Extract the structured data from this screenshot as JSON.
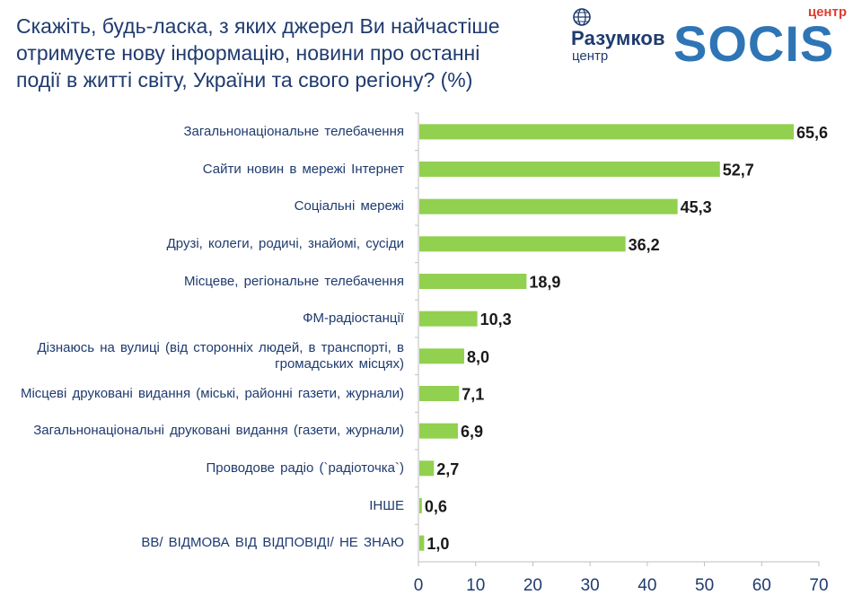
{
  "title": "Скажіть, будь-ласка, з яких джерел Ви найчастіше\nотримуєте нову інформацію, новини про останні\nподії в житті світу, України та свого регіону? (%)",
  "logos": {
    "razumkov_name": "Разумков",
    "razumkov_sub": "центр",
    "socis_name": "SOCIS",
    "socis_sub": "центр"
  },
  "chart_data": {
    "type": "bar",
    "orientation": "horizontal",
    "categories": [
      "Загальнонаціональне телебачення",
      "Сайти новин в мережі Інтернет",
      "Соціальні мережі",
      "Друзі, колеги, родичі, знайомі, сусіди",
      "Місцеве, регіональне телебачення",
      "ФМ-радіостанції",
      "Дізнаюсь на вулиці (від сторонніх людей, в транспорті, в громадських місцях)",
      "Місцеві друковані видання (міські, районні газети, журнали)",
      "Загальнонаціональні друковані видання (газети, журнали)",
      "Проводове радіо (`радіоточка`)",
      "ІНШЕ",
      "ВВ/ ВІДМОВА ВІД ВІДПОВІДІ/ НЕ ЗНАЮ"
    ],
    "value_labels": [
      "65,6",
      "52,7",
      "45,3",
      "36,2",
      "18,9",
      "10,3",
      "8,0",
      "7,1",
      "6,9",
      "2,7",
      "0,6",
      "1,0"
    ],
    "values": [
      65.6,
      52.7,
      45.3,
      36.2,
      18.9,
      10.3,
      8.0,
      7.1,
      6.9,
      2.7,
      0.6,
      1.0
    ],
    "xlim": [
      0,
      70
    ],
    "xticks": [
      "0",
      "10",
      "20",
      "30",
      "40",
      "50",
      "60",
      "70"
    ],
    "grid": false,
    "colors": {
      "bar": "#92d050",
      "title": "#1f3b6f",
      "logo_blue": "#2e75b6",
      "logo_red": "#e03c31"
    }
  }
}
